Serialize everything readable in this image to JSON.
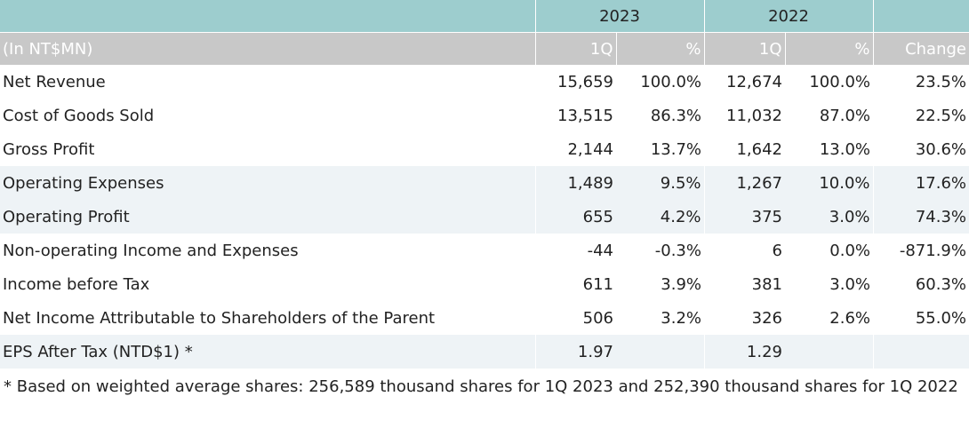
{
  "header": {
    "year_2023": "2023",
    "year_2022": "2022",
    "unit_label": "(In NT$MN)",
    "col_1q_2023": "1Q",
    "col_pct_2023": "%",
    "col_1q_2022": "1Q",
    "col_pct_2022": "%",
    "col_change": "Change"
  },
  "rows": [
    {
      "label": "Net Revenue",
      "q2023": "15,659",
      "p2023": "100.0%",
      "q2022": "12,674",
      "p2022": "100.0%",
      "change": "23.5%"
    },
    {
      "label": "Cost of Goods Sold",
      "q2023": "13,515",
      "p2023": "86.3%",
      "q2022": "11,032",
      "p2022": "87.0%",
      "change": "22.5%"
    },
    {
      "label": "Gross Profit",
      "q2023": "2,144",
      "p2023": "13.7%",
      "q2022": "1,642",
      "p2022": "13.0%",
      "change": "30.6%"
    },
    {
      "label": "Operating Expenses",
      "q2023": "1,489",
      "p2023": "9.5%",
      "q2022": "1,267",
      "p2022": "10.0%",
      "change": "17.6%"
    },
    {
      "label": "Operating Profit",
      "q2023": "655",
      "p2023": "4.2%",
      "q2022": "375",
      "p2022": "3.0%",
      "change": "74.3%"
    },
    {
      "label": "Non-operating Income and Expenses",
      "q2023": "-44",
      "p2023": "-0.3%",
      "q2022": "6",
      "p2022": "0.0%",
      "change": "-871.9%"
    },
    {
      "label": "Income before Tax",
      "q2023": "611",
      "p2023": "3.9%",
      "q2022": "381",
      "p2022": "3.0%",
      "change": "60.3%"
    },
    {
      "label": "Net Income Attributable to Shareholders of the Parent",
      "q2023": "506",
      "p2023": "3.2%",
      "q2022": "326",
      "p2022": "2.6%",
      "change": "55.0%"
    },
    {
      "label": "EPS After Tax (NTD$1) *",
      "q2023": "1.97",
      "p2023": "",
      "q2022": "1.29",
      "p2022": "",
      "change": ""
    }
  ],
  "footnote": "* Based on weighted average shares: 256,589 thousand shares for 1Q 2023 and 252,390 thousand shares for 1Q 2022"
}
